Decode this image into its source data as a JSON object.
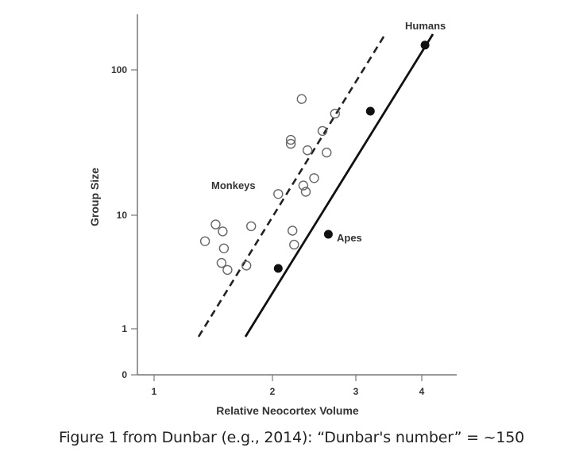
{
  "chart_data": {
    "type": "scatter",
    "title": "",
    "xlabel": "Relative Neocortex Volume",
    "ylabel": "Group Size",
    "x_ticks": [
      "1",
      "2",
      "3",
      "4"
    ],
    "y_ticks": [
      "0",
      "1",
      "10",
      "100"
    ],
    "y_scale": "log",
    "xlim": [
      0.9,
      4.6
    ],
    "ylim": [
      0,
      250
    ],
    "grid": false,
    "legend": null,
    "annotations": [
      {
        "text": "Humans",
        "x": 4.0,
        "y": 200
      },
      {
        "text": "Monkeys",
        "x": 1.6,
        "y": 17
      },
      {
        "text": "Apes",
        "x": 2.85,
        "y": 6.8
      }
    ],
    "series": [
      {
        "name": "Monkeys",
        "marker": "open-circle",
        "points": [
          {
            "x": 2.35,
            "y": 63
          },
          {
            "x": 2.22,
            "y": 33
          },
          {
            "x": 2.22,
            "y": 31
          },
          {
            "x": 2.75,
            "y": 50
          },
          {
            "x": 2.6,
            "y": 38
          },
          {
            "x": 2.42,
            "y": 28
          },
          {
            "x": 2.65,
            "y": 27
          },
          {
            "x": 2.5,
            "y": 18
          },
          {
            "x": 2.37,
            "y": 16
          },
          {
            "x": 2.4,
            "y": 14.5
          },
          {
            "x": 2.07,
            "y": 14
          },
          {
            "x": 1.52,
            "y": 8.3
          },
          {
            "x": 1.58,
            "y": 7.2
          },
          {
            "x": 1.82,
            "y": 8.0
          },
          {
            "x": 1.43,
            "y": 5.9
          },
          {
            "x": 1.59,
            "y": 5.1
          },
          {
            "x": 1.57,
            "y": 3.8
          },
          {
            "x": 1.62,
            "y": 3.3
          },
          {
            "x": 1.78,
            "y": 3.6
          },
          {
            "x": 2.24,
            "y": 7.3
          },
          {
            "x": 2.26,
            "y": 5.5
          }
        ]
      },
      {
        "name": "Apes / Humans",
        "marker": "filled-circle",
        "points": [
          {
            "x": 2.07,
            "y": 3.4
          },
          {
            "x": 2.67,
            "y": 6.8
          },
          {
            "x": 3.22,
            "y": 52
          },
          {
            "x": 4.05,
            "y": 148
          }
        ]
      },
      {
        "name": "Monkey regression",
        "style": "dashed-line",
        "points": [
          {
            "x": 1.37,
            "y": 0.85
          },
          {
            "x": 3.3,
            "y": 175
          }
        ]
      },
      {
        "name": "Ape regression",
        "style": "solid-line",
        "points": [
          {
            "x": 1.77,
            "y": 0.85
          },
          {
            "x": 4.12,
            "y": 175
          }
        ]
      }
    ]
  },
  "caption": "Figure 1 from Dunbar (e.g., 2014): “Dunbar's number” = ~150"
}
